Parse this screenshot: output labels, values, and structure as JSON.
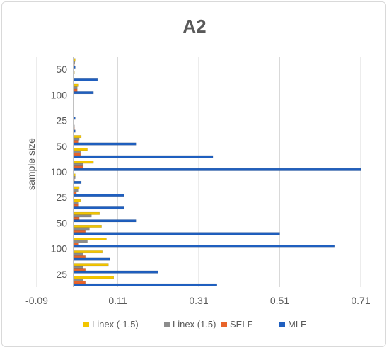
{
  "chart_data": {
    "type": "bar",
    "orientation": "horizontal",
    "title": "A2",
    "ylabel": "sample size",
    "xlabel": "",
    "xlim": [
      -0.09,
      0.71
    ],
    "xticks": [
      "-0.09",
      "0.11",
      "0.31",
      "0.51",
      "0.71"
    ],
    "grid": true,
    "legend_position": "bottom",
    "category_labels": [
      "25",
      "100",
      "50",
      "25",
      "100",
      "50",
      "25",
      "100",
      "50"
    ],
    "categories": [
      "g1",
      "g2",
      "g3",
      "g4",
      "g5",
      "g6",
      "g7",
      "g8",
      "g9",
      "g10",
      "g11",
      "g12",
      "g13",
      "g14",
      "g15",
      "g16",
      "g17",
      "g18"
    ],
    "series": [
      {
        "name": "MLE",
        "color": "#1f5fbf",
        "values": [
          0.355,
          0.21,
          0.09,
          0.645,
          0.51,
          0.155,
          0.125,
          0.125,
          0.02,
          0.71,
          0.345,
          0.155,
          0.005,
          0.005,
          0.0,
          0.05,
          0.06,
          0.005
        ]
      },
      {
        "name": "SELF",
        "color": "#e8642a",
        "values": [
          0.03,
          0.03,
          0.03,
          0.012,
          0.03,
          0.015,
          0.012,
          0.008,
          0.003,
          0.025,
          0.018,
          0.012,
          0.003,
          0.002,
          0.0,
          0.01,
          0.002,
          0.003
        ]
      },
      {
        "name": "Linex (1.5)",
        "color": "#8c8c8c",
        "values": [
          0.025,
          0.025,
          0.025,
          0.035,
          0.04,
          0.045,
          0.012,
          0.012,
          0.005,
          0.025,
          0.018,
          0.015,
          0.003,
          0.002,
          0.0,
          0.01,
          0.002,
          0.004
        ]
      },
      {
        "name": "Linex (-1.5)",
        "color": "#f2c500",
        "values": [
          0.1,
          0.087,
          0.072,
          0.082,
          0.07,
          0.065,
          0.018,
          0.015,
          0.005,
          0.05,
          0.035,
          0.02,
          0.002,
          0.002,
          0.0,
          0.012,
          0.003,
          0.005
        ]
      }
    ]
  }
}
